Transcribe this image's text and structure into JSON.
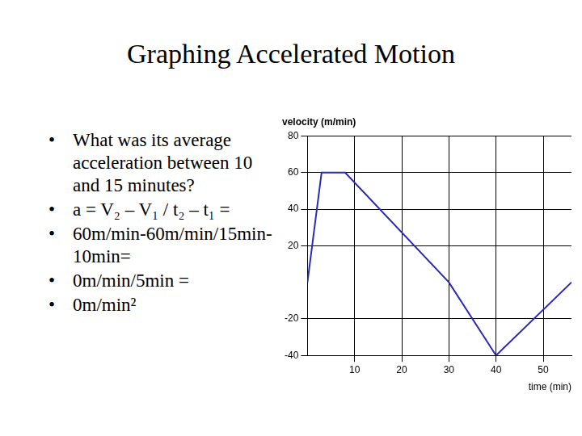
{
  "slide": {
    "title": "Graphing Accelerated Motion",
    "bullets": [
      "What was its average acceleration between 10 and 15 minutes?",
      "a = V₂ – V₁ / t₂ – t₁ =",
      "60m/min-60m/min/15min-10min=",
      "0m/min/5min =",
      "0m/min²"
    ]
  },
  "chart_data": {
    "type": "line",
    "title": "velocity (m/min)",
    "x_label": "time (min)",
    "x": [
      0,
      3,
      8,
      30,
      40,
      56
    ],
    "values": [
      0,
      60,
      60,
      0,
      -40,
      0
    ],
    "color": "#2a2ab8",
    "xlim": [
      0,
      56
    ],
    "xticks": [
      10,
      20,
      30,
      40,
      50
    ],
    "ylim": [
      -40,
      80
    ],
    "yticks": [
      -40,
      -20,
      20,
      40,
      60,
      80
    ],
    "grid": true
  }
}
